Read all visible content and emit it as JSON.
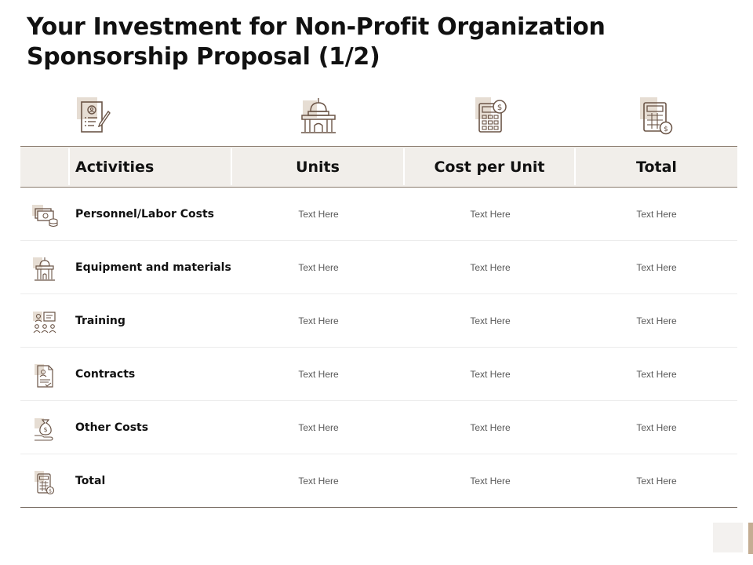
{
  "title": {
    "line1": "Your Investment for Non-Profit Organization",
    "line2": "Sponsorship Proposal  (1/2)"
  },
  "header_icons": [
    "document-signature-icon",
    "government-building-icon",
    "calculator-dollar-icon",
    "calculator-coin-icon"
  ],
  "table": {
    "headers": [
      "Activities",
      "Units",
      "Cost per Unit",
      "Total"
    ],
    "rows": [
      {
        "icon": "money-coins-icon",
        "activity": "Personnel/Labor Costs",
        "units": "Text Here",
        "cost": "Text Here",
        "total": "Text Here"
      },
      {
        "icon": "building-icon",
        "activity": "Equipment and materials",
        "units": "Text Here",
        "cost": "Text Here",
        "total": "Text Here"
      },
      {
        "icon": "training-group-icon",
        "activity": "Training",
        "units": "Text Here",
        "cost": "Text Here",
        "total": "Text Here"
      },
      {
        "icon": "contract-document-icon",
        "activity": "Contracts",
        "units": "Text Here",
        "cost": "Text Here",
        "total": "Text Here"
      },
      {
        "icon": "money-bag-hand-icon",
        "activity": "Other Costs",
        "units": "Text Here",
        "cost": "Text Here",
        "total": "Text Here"
      },
      {
        "icon": "calculator-coin-icon",
        "activity": "Total",
        "units": "Text Here",
        "cost": "Text Here",
        "total": "Text Here"
      }
    ]
  },
  "colors": {
    "accent_beige": "#e6ddd3",
    "icon_stroke": "#6b5547",
    "header_bg": "#f1eeea",
    "corner_bar": "#c4ad93"
  }
}
